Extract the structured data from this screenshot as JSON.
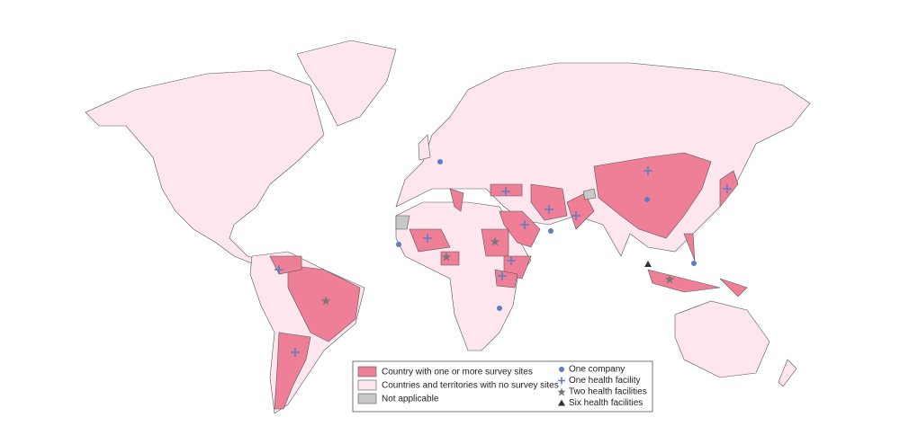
{
  "legend": {
    "fills": [
      {
        "label": "Country with one or more survey sites",
        "color": "#ef7f97"
      },
      {
        "label": "Countries and territories with no survey sites",
        "color": "#fde6ee"
      },
      {
        "label": "Not applicable",
        "color": "#c8c8c8"
      }
    ],
    "symbols": [
      {
        "label": "One company",
        "color": "#5b7fc4"
      },
      {
        "label": "One health facility",
        "color": "#5b7fc4"
      },
      {
        "label": "Two health facilities",
        "color": "#777777"
      },
      {
        "label": "Six health facilities",
        "color": "#333333"
      }
    ]
  }
}
